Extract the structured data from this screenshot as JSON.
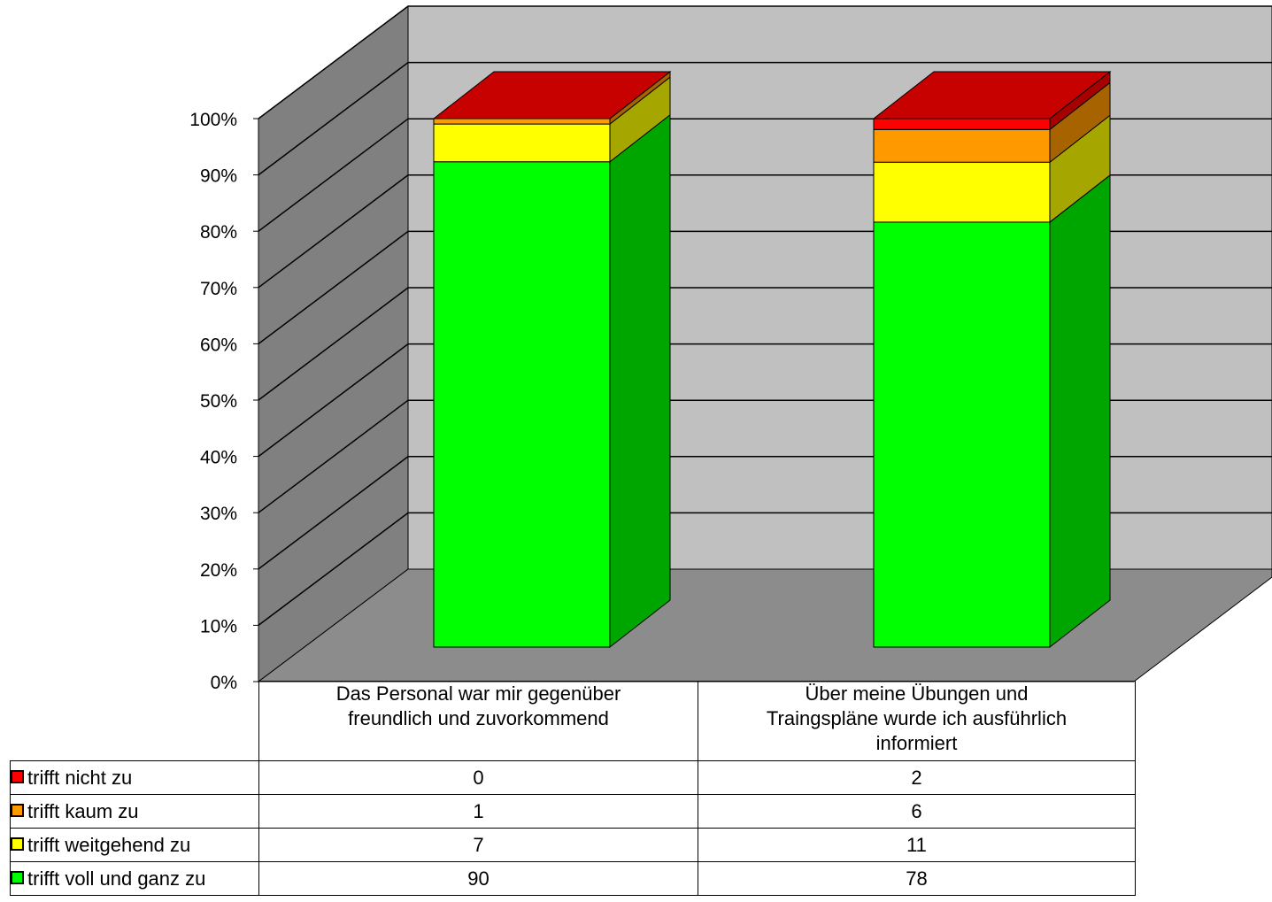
{
  "chart_data": {
    "type": "bar",
    "stacked": true,
    "three_d": true,
    "categories": [
      "Das Personal war mir gegenüber freundlich und zuvorkommend",
      "Über meine Übungen und Traingspläne wurde ich ausführlich informiert"
    ],
    "series": [
      {
        "name": "trifft voll und ganz zu",
        "color": "#00ff00",
        "values": [
          90,
          78
        ]
      },
      {
        "name": "trifft weitgehend zu",
        "color": "#ffff00",
        "values": [
          7,
          11
        ]
      },
      {
        "name": "trifft kaum zu",
        "color": "#ff9900",
        "values": [
          1,
          6
        ]
      },
      {
        "name": "trifft nicht zu",
        "color": "#ff0000",
        "values": [
          0,
          2
        ]
      }
    ],
    "y_ticks": [
      "0%",
      "10%",
      "20%",
      "30%",
      "40%",
      "50%",
      "60%",
      "70%",
      "80%",
      "90%",
      "100%"
    ],
    "ylim": [
      0,
      100
    ],
    "grid": true,
    "legend": "table-left"
  },
  "table": {
    "categories_html": [
      "Das Personal war mir gegenüber<br>freundlich und zuvorkommend",
      "Über meine Übungen und<br>Traingspläne wurde ich ausführlich<br>informiert"
    ]
  }
}
